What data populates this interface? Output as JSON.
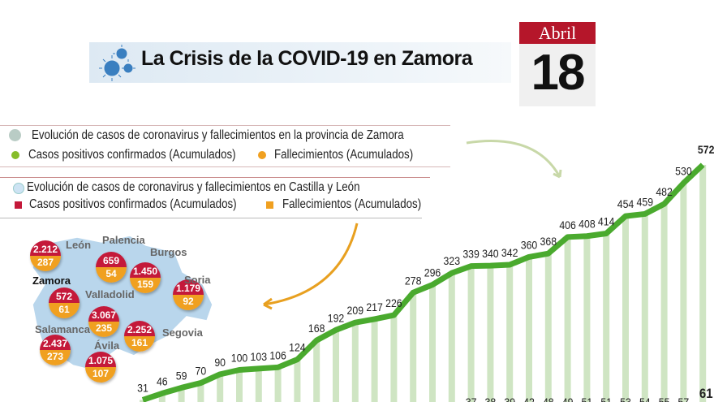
{
  "header": {
    "title": "La Crisis de la COVID-19 en Zamora",
    "month": "Abril",
    "day": "18"
  },
  "legend": {
    "zamora_title": "Evolución de casos de coronavirus y fallecimientos en la provincia de Zamora",
    "zamora_cases": "Casos positivos confirmados (Acumulados)",
    "zamora_deaths": "Fallecimientos (Acumulados)",
    "cyl_title": "Evolución de casos de coronavirus y fallecimientos en Castilla y León",
    "cyl_cases": "Casos positivos confirmados (Acumulados)",
    "cyl_deaths": "Fallecimientos (Acumulados)"
  },
  "colors": {
    "cases_line": "#4aaa2e",
    "cases_bar": "#cfe5c3",
    "death_dot": "#f0a020",
    "cases_dot": "#86bd2a",
    "cyl_cases": "#c4193a",
    "map": "#b9d6ec"
  },
  "map": {
    "provinces": [
      {
        "name": "León",
        "cases": "2.212",
        "deaths": "287"
      },
      {
        "name": "Palencia",
        "cases": "659",
        "deaths": "54"
      },
      {
        "name": "Burgos",
        "cases": "1.450",
        "deaths": "159"
      },
      {
        "name": "Soria",
        "cases": "1.179",
        "deaths": "92"
      },
      {
        "name": "Zamora",
        "cases": "572",
        "deaths": "61"
      },
      {
        "name": "Valladolid",
        "cases": "3.067",
        "deaths": "235"
      },
      {
        "name": "Segovia",
        "cases": "2.252",
        "deaths": "161"
      },
      {
        "name": "Salamanca",
        "cases": "2.437",
        "deaths": "273"
      },
      {
        "name": "Ávila",
        "cases": "1.075",
        "deaths": "107"
      }
    ]
  },
  "chart_data": {
    "type": "line",
    "title": "Evolución de casos de coronavirus y fallecimientos en la provincia de Zamora",
    "series": [
      {
        "name": "Casos positivos confirmados (Acumulados)",
        "values": [
          31,
          46,
          59,
          70,
          90,
          100,
          103,
          106,
          124,
          168,
          192,
          209,
          217,
          226,
          278,
          296,
          323,
          339,
          340,
          342,
          360,
          368,
          406,
          408,
          414,
          454,
          459,
          482,
          530,
          572
        ]
      },
      {
        "name": "Fallecimientos (Acumulados)",
        "values": [
          null,
          null,
          null,
          null,
          null,
          null,
          null,
          null,
          null,
          null,
          null,
          null,
          null,
          null,
          null,
          null,
          null,
          37,
          38,
          39,
          42,
          48,
          49,
          51,
          51,
          53,
          54,
          55,
          57,
          61
        ]
      }
    ]
  }
}
